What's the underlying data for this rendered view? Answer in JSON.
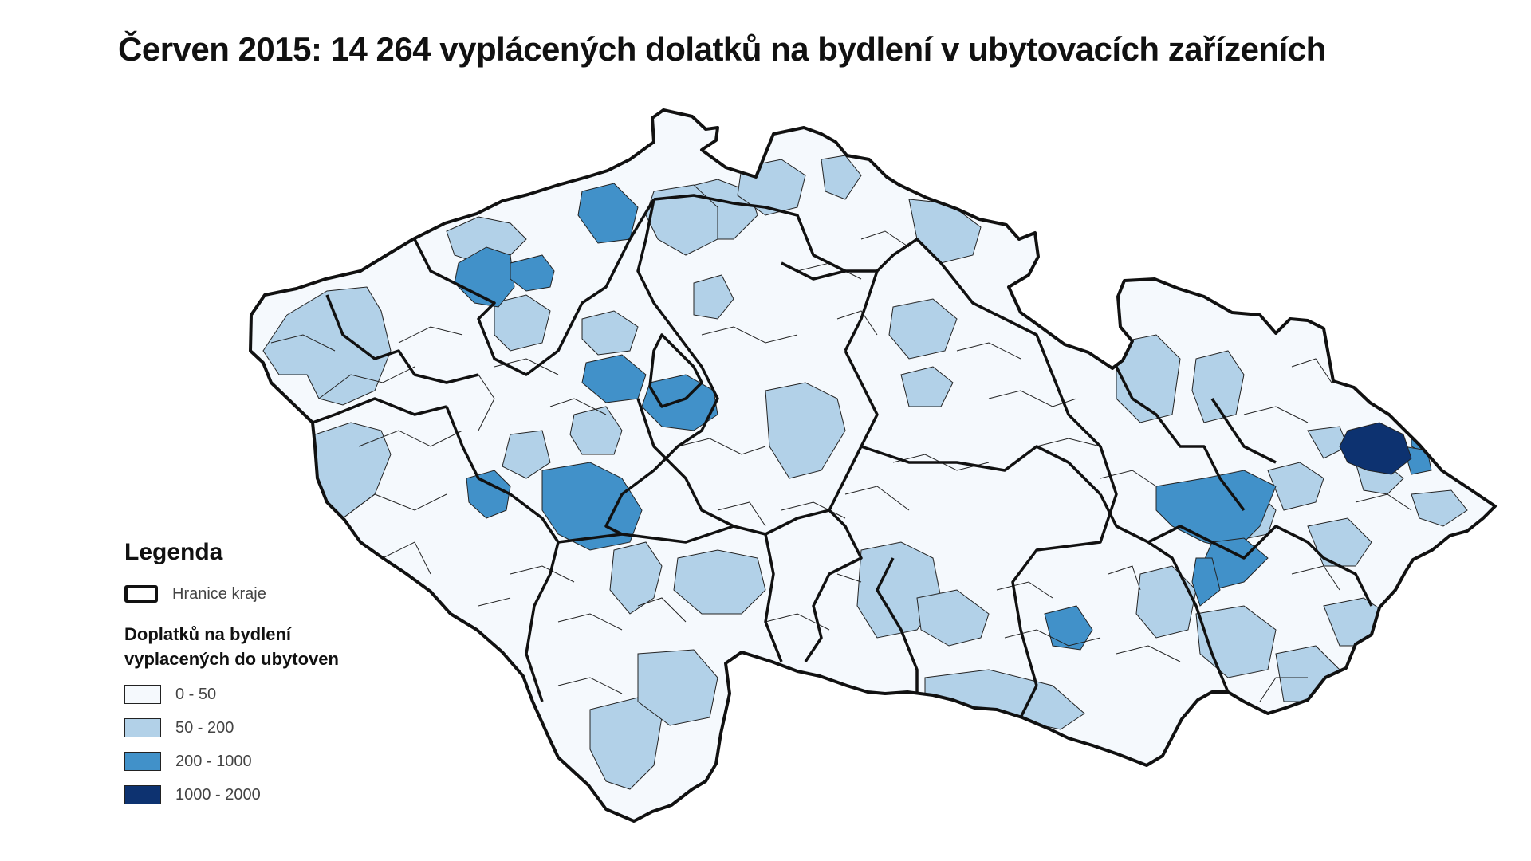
{
  "title": "Červen 2015: 14 264 vyplácených dolatků na bydlení v ubytovacích zařízeních",
  "legend": {
    "title": "Legenda",
    "boundary_label": "Hranice kraje",
    "subtitle_line1": "Doplatků na bydlení",
    "subtitle_line2": "vyplacených do ubytoven",
    "classes": [
      {
        "label": "0 - 50",
        "color": "#f5f9fd"
      },
      {
        "label": "50 - 200",
        "color": "#b2d1e8"
      },
      {
        "label": "200 - 1000",
        "color": "#4191c9"
      },
      {
        "label": "1000 - 2000",
        "color": "#0d3270"
      }
    ]
  },
  "map": {
    "outline_color": "#111111",
    "district_line_color": "#222222"
  }
}
